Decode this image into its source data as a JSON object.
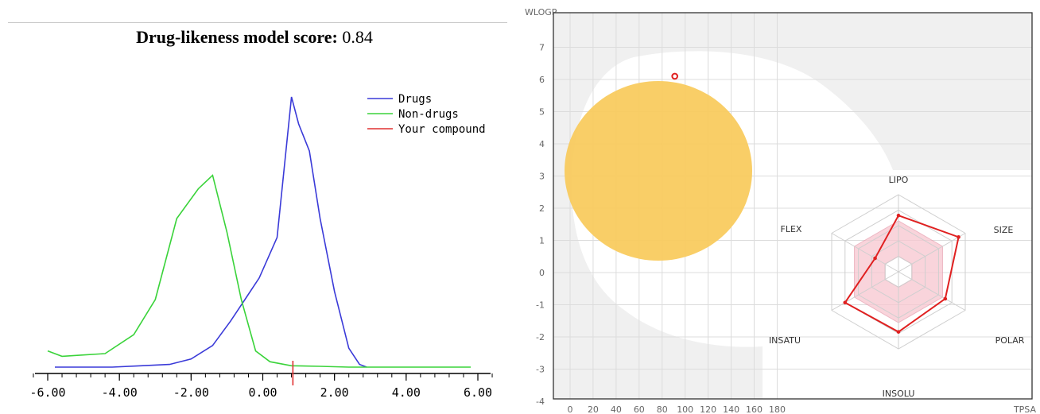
{
  "chart_data": [
    {
      "type": "line",
      "title": "Drug-likeness model score:",
      "score_value": "0.84",
      "xlim": [
        -6.2,
        6.2
      ],
      "xticks": [
        "-6.00",
        "-4.00",
        "-2.00",
        "0.00",
        "2.00",
        "4.00",
        "6.00"
      ],
      "xtick_values": [
        -6,
        -4,
        -2,
        0,
        2,
        4,
        6
      ],
      "ylim": [
        0,
        1
      ],
      "legend": {
        "placement": "top-right"
      },
      "series": [
        {
          "name": "Drugs",
          "color": "#3a3ad8",
          "points": [
            [
              -5.8,
              0.0
            ],
            [
              -5.0,
              0.0
            ],
            [
              -4.2,
              0.0
            ],
            [
              -3.4,
              0.005
            ],
            [
              -2.6,
              0.01
            ],
            [
              -2.0,
              0.03
            ],
            [
              -1.4,
              0.08
            ],
            [
              -0.9,
              0.17
            ],
            [
              -0.5,
              0.25
            ],
            [
              -0.1,
              0.33
            ],
            [
              0.4,
              0.48
            ],
            [
              0.8,
              1.0
            ],
            [
              1.0,
              0.9
            ],
            [
              1.3,
              0.8
            ],
            [
              1.6,
              0.55
            ],
            [
              2.0,
              0.28
            ],
            [
              2.4,
              0.07
            ],
            [
              2.7,
              0.01
            ],
            [
              2.9,
              0.0
            ]
          ]
        },
        {
          "name": "Non-drugs",
          "color": "#3ad33a",
          "points": [
            [
              -6.0,
              0.06
            ],
            [
              -5.6,
              0.04
            ],
            [
              -5.0,
              0.045
            ],
            [
              -4.4,
              0.05
            ],
            [
              -3.6,
              0.12
            ],
            [
              -3.0,
              0.25
            ],
            [
              -2.4,
              0.55
            ],
            [
              -1.8,
              0.66
            ],
            [
              -1.4,
              0.71
            ],
            [
              -1.0,
              0.5
            ],
            [
              -0.6,
              0.25
            ],
            [
              -0.2,
              0.06
            ],
            [
              0.2,
              0.02
            ],
            [
              0.8,
              0.005
            ],
            [
              1.6,
              0.003
            ],
            [
              2.4,
              0.0
            ],
            [
              3.6,
              0.0
            ],
            [
              4.8,
              0.0
            ],
            [
              5.8,
              0.0
            ]
          ]
        },
        {
          "name": "Your compound",
          "color": "#e03030",
          "x": 0.84
        }
      ]
    },
    {
      "type": "scatter",
      "xlabel": "TPSA",
      "ylabel": "WLOGP",
      "xlim": [
        -10,
        195
      ],
      "ylim": [
        -4,
        8
      ],
      "xticks": [
        0,
        20,
        40,
        60,
        80,
        100,
        120,
        140,
        160,
        180
      ],
      "yticks": [
        -4,
        -3,
        -2,
        -1,
        0,
        1,
        2,
        3,
        4,
        5,
        6,
        7
      ],
      "grid": true,
      "points": [
        {
          "x": 91,
          "y": 6.1,
          "color": "#e02020"
        }
      ]
    },
    {
      "type": "radar",
      "axes": [
        "LIPO",
        "SIZE",
        "POLAR",
        "INSOLU",
        "INSATU",
        "FLEX"
      ],
      "values": [
        0.73,
        0.9,
        0.7,
        0.78,
        0.8,
        0.35
      ],
      "color": "#e02020",
      "fill": "#f7c6d0"
    }
  ]
}
